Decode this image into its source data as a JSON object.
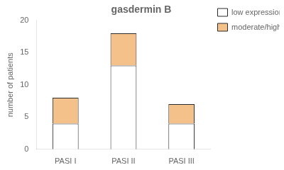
{
  "chart_data": {
    "type": "bar",
    "title": "gasdermin B",
    "categories": [
      "PASI I",
      "PASI II",
      "PASI III"
    ],
    "series": [
      {
        "name": "low expression",
        "color": "#ffffff",
        "values": [
          4,
          13,
          4
        ]
      },
      {
        "name": "moderate/high expression",
        "color": "#f5c18b",
        "values": [
          4,
          5,
          3
        ]
      }
    ],
    "ylabel": "number of patients",
    "ylim": [
      0,
      20
    ],
    "yticks": [
      0,
      5,
      10,
      15,
      20
    ],
    "stacked": true,
    "grid": false,
    "legend": "right"
  }
}
